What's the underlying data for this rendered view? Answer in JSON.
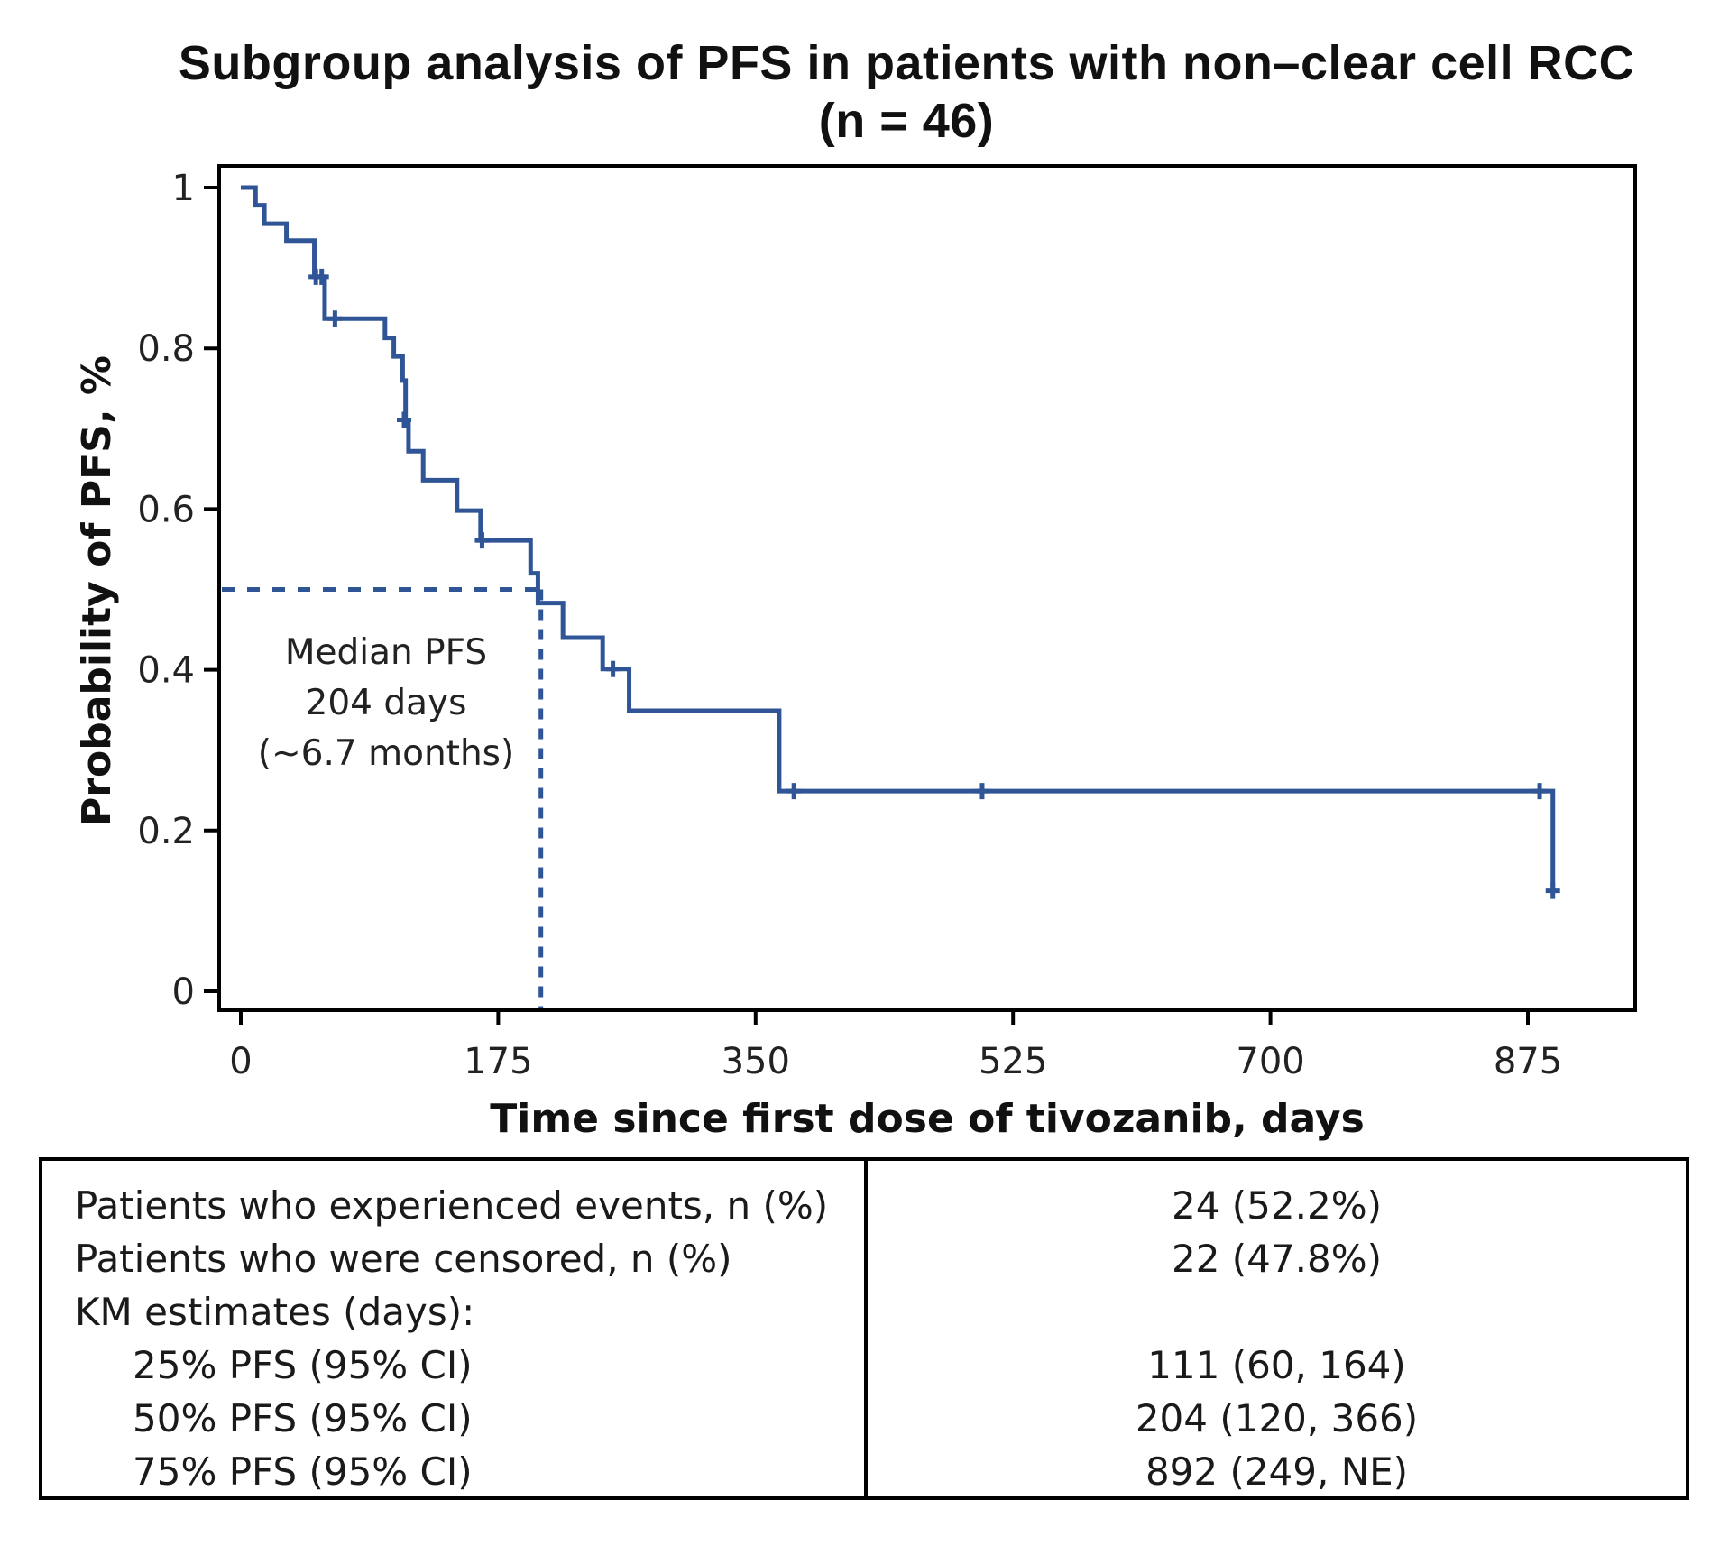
{
  "chart_data": {
    "type": "line",
    "subtype": "kaplan-meier-step",
    "title": "Subgroup analysis of PFS in patients with non–clear cell RCC",
    "subtitle": "(n = 46)",
    "xlabel": "Time since first dose of tivozanib, days",
    "ylabel": "Probability of PFS, %",
    "xlim": [
      0,
      935
    ],
    "ylim": [
      0,
      1
    ],
    "xticks": [
      0,
      175,
      350,
      525,
      700,
      875
    ],
    "xtick_labels": [
      "0",
      "175",
      "350",
      "525",
      "700",
      "875"
    ],
    "yticks": [
      0,
      0.2,
      0.4,
      0.6,
      0.8,
      1
    ],
    "ytick_labels": [
      "0",
      "0.2",
      "0.4",
      "0.6",
      "0.8",
      "1"
    ],
    "grid": false,
    "series": [
      {
        "name": "PFS",
        "color": "#2f5597",
        "steps": [
          {
            "t": 0,
            "p": 1.0
          },
          {
            "t": 10,
            "p": 0.978
          },
          {
            "t": 16,
            "p": 0.955
          },
          {
            "t": 31,
            "p": 0.934
          },
          {
            "t": 50,
            "p": 0.889
          },
          {
            "t": 57,
            "p": 0.837
          },
          {
            "t": 98,
            "p": 0.813
          },
          {
            "t": 104,
            "p": 0.79
          },
          {
            "t": 110,
            "p": 0.76
          },
          {
            "t": 112,
            "p": 0.711
          },
          {
            "t": 114,
            "p": 0.672
          },
          {
            "t": 124,
            "p": 0.636
          },
          {
            "t": 147,
            "p": 0.598
          },
          {
            "t": 163,
            "p": 0.561
          },
          {
            "t": 197,
            "p": 0.52
          },
          {
            "t": 202,
            "p": 0.483
          },
          {
            "t": 219,
            "p": 0.44
          },
          {
            "t": 246,
            "p": 0.401
          },
          {
            "t": 264,
            "p": 0.349
          },
          {
            "t": 366,
            "p": 0.249
          },
          {
            "t": 892,
            "p": 0.125
          }
        ],
        "censored": [
          {
            "t": 51,
            "p": 0.889
          },
          {
            "t": 55,
            "p": 0.889
          },
          {
            "t": 64,
            "p": 0.837
          },
          {
            "t": 111,
            "p": 0.711
          },
          {
            "t": 164,
            "p": 0.561
          },
          {
            "t": 253,
            "p": 0.401
          },
          {
            "t": 376,
            "p": 0.249
          },
          {
            "t": 504,
            "p": 0.249
          },
          {
            "t": 883,
            "p": 0.249
          },
          {
            "t": 892,
            "p": 0.125
          }
        ]
      }
    ],
    "median": {
      "t": 204,
      "p": 0.5,
      "color": "#2f5597",
      "style": "dashed"
    },
    "annotation": [
      "Median PFS",
      "204 days",
      "(~6.7 months)"
    ]
  },
  "table": {
    "rows": [
      {
        "label": "Patients who experienced events, n (%)",
        "value": "24 (52.2%)",
        "indent": false
      },
      {
        "label": "Patients who were censored, n (%)",
        "value": "22 (47.8%)",
        "indent": false
      },
      {
        "label": "KM estimates (days):",
        "value": "",
        "indent": false
      },
      {
        "label": "25% PFS (95% CI)",
        "value": "111 (60, 164)",
        "indent": true
      },
      {
        "label": "50% PFS (95% CI)",
        "value": "204 (120, 366)",
        "indent": true
      },
      {
        "label": "75% PFS (95% CI)",
        "value": "892 (249, NE)",
        "indent": true
      }
    ]
  }
}
